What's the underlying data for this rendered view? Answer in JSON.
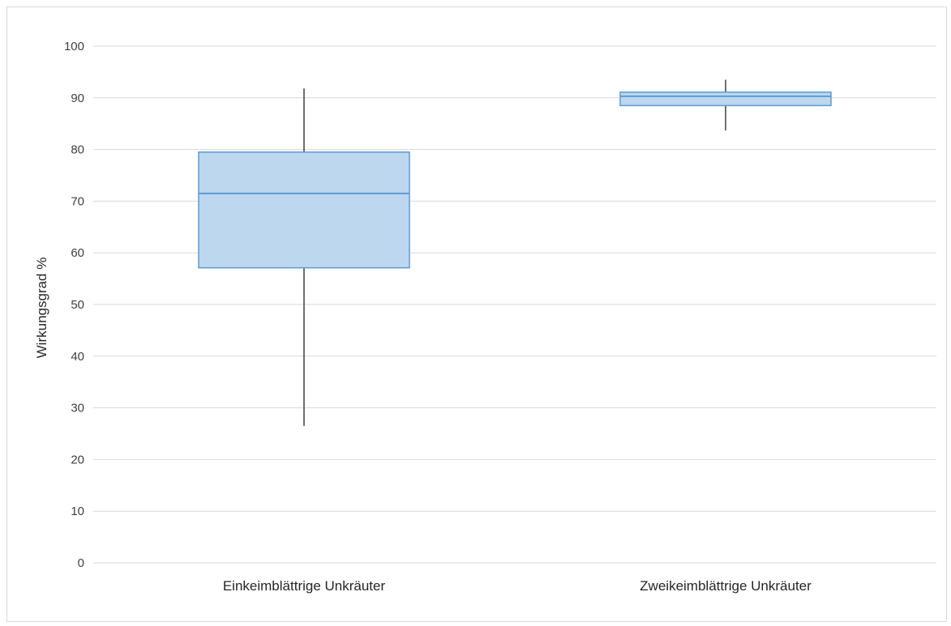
{
  "chart_data": {
    "type": "box",
    "ylabel": "Wirkungsgrad %",
    "ylim": [
      0,
      100
    ],
    "yticks": [
      0,
      10,
      20,
      30,
      40,
      50,
      60,
      70,
      80,
      90,
      100
    ],
    "grid": true,
    "categories": [
      "Einkeimblättrige Unkräuter",
      "Zweikeimblättrige Unkräuter"
    ],
    "series": [
      {
        "min": 26.5,
        "q1": 57.1,
        "median": 71.5,
        "q3": 79.5,
        "max": 91.8
      },
      {
        "min": 83.7,
        "q1": 88.5,
        "median": 90.3,
        "q3": 91.1,
        "max": 93.5
      }
    ],
    "colors": {
      "box_fill": "#bdd7ee",
      "box_stroke": "#5b9bd5",
      "whisker": "#404040",
      "grid": "#d9d9d9"
    }
  }
}
